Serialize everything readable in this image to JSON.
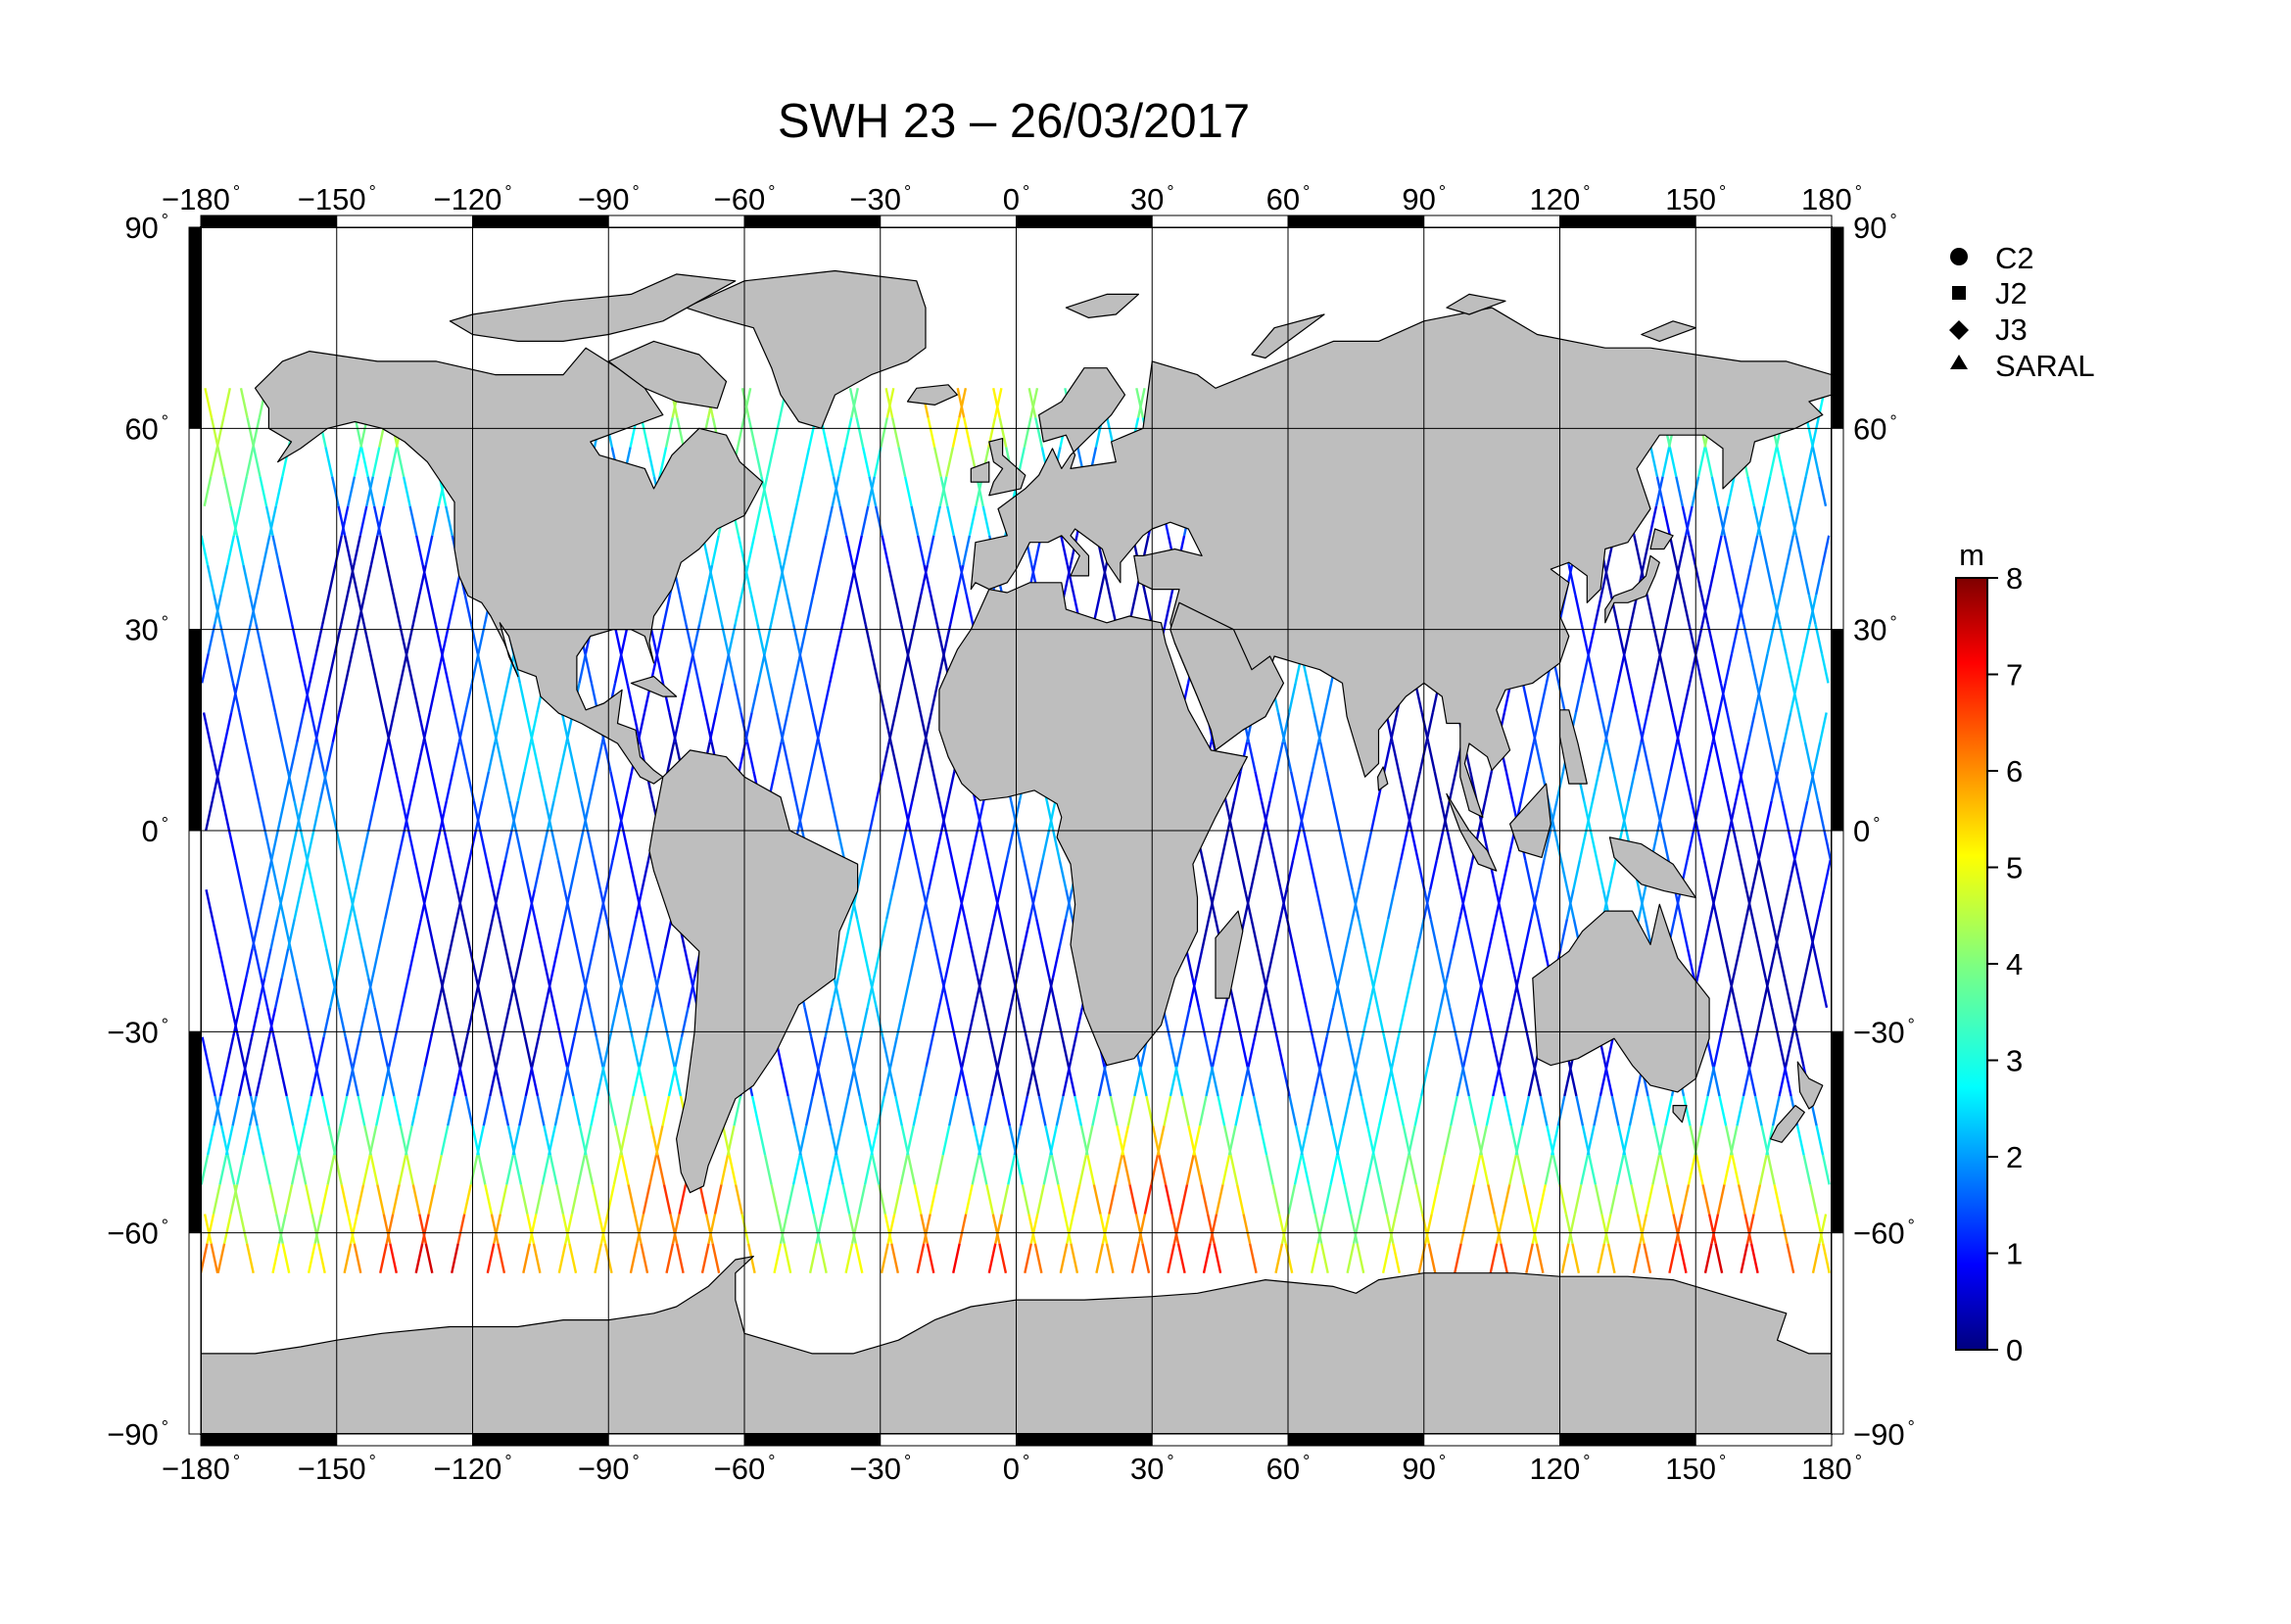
{
  "title": "SWH 23 – 26/03/2017",
  "map": {
    "lon_ticks": [
      "−180",
      "−150",
      "−120",
      "−90",
      "−60",
      "−30",
      "0",
      "30",
      "60",
      "90",
      "120",
      "150",
      "180"
    ],
    "lat_ticks_left": [
      "90",
      "60",
      "30",
      "0",
      "−30",
      "−60",
      "−90"
    ],
    "lat_ticks_right": [
      "90",
      "60",
      "30",
      "0",
      "−30",
      "−60",
      "−90"
    ],
    "degree_symbol": "°",
    "land_color": "#bebebe",
    "ocean_color": "#ffffff",
    "track_latitude_limit": 66
  },
  "legend": {
    "items": [
      {
        "symbol": "circle",
        "label": "C2"
      },
      {
        "symbol": "square",
        "label": "J2"
      },
      {
        "symbol": "diamond",
        "label": "J3"
      },
      {
        "symbol": "triangle",
        "label": "SARAL"
      }
    ]
  },
  "colorbar": {
    "unit": "m",
    "min": 0,
    "max": 8,
    "ticks": [
      "0",
      "1",
      "2",
      "3",
      "4",
      "5",
      "6",
      "7",
      "8"
    ],
    "colormap": "jet"
  }
}
